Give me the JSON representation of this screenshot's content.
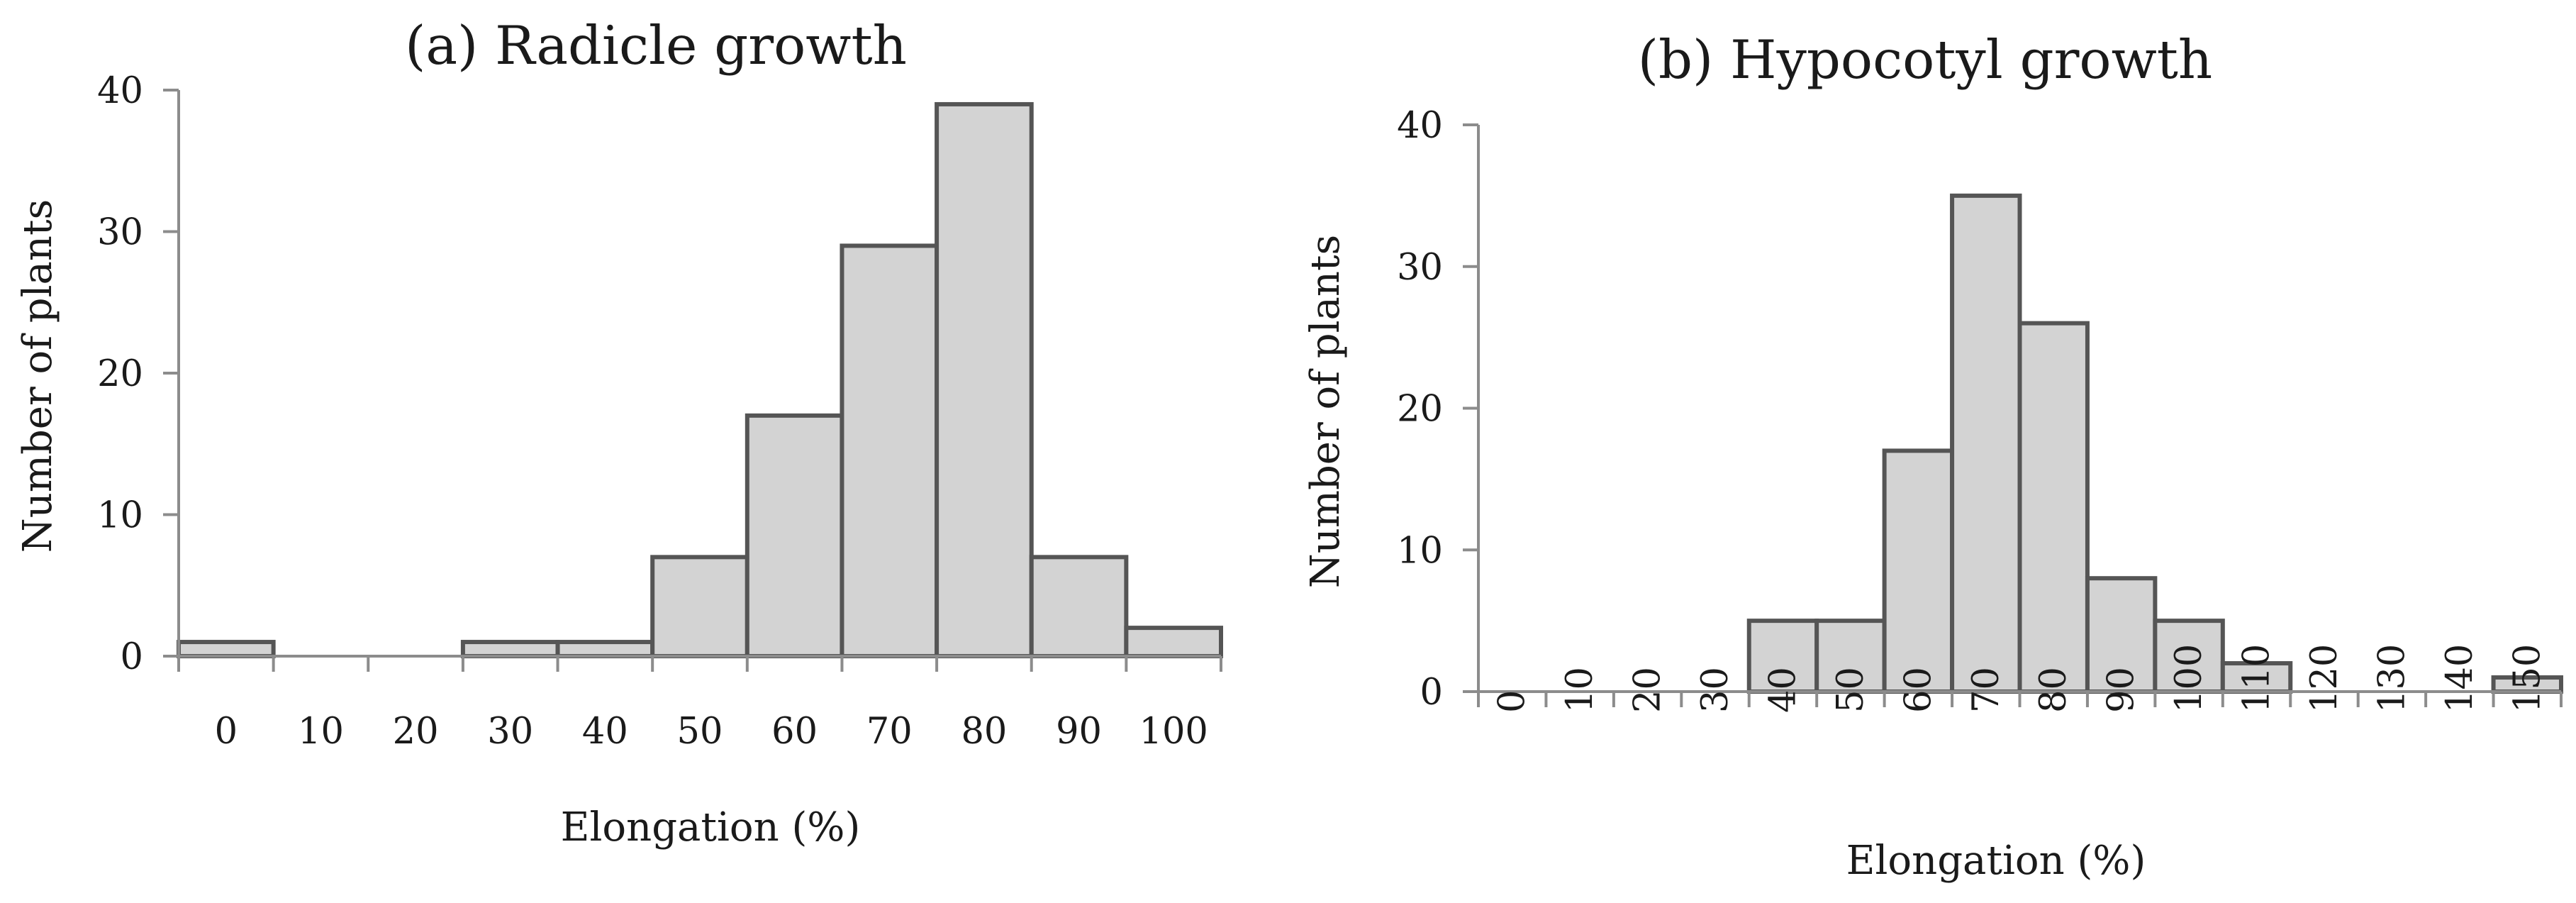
{
  "colors": {
    "bar_fill": "#d3d3d3",
    "bar_stroke": "#555555",
    "axis": "#8c8c8c"
  },
  "chart_data": [
    {
      "type": "bar",
      "title": "(a) Radicle growth",
      "xlabel": "Elongation (%)",
      "ylabel": "Number of plants",
      "categories": [
        "0",
        "10",
        "20",
        "30",
        "40",
        "50",
        "60",
        "70",
        "80",
        "90",
        "100"
      ],
      "values": [
        1,
        0,
        0,
        1,
        1,
        7,
        17,
        29,
        39,
        7,
        2
      ],
      "ylim": [
        0,
        40
      ],
      "yticks": [
        "0",
        "10",
        "20",
        "30",
        "40"
      ],
      "grid": false,
      "legend": "none"
    },
    {
      "type": "bar",
      "title": "(b) Hypocotyl growth",
      "xlabel": "Elongation (%)",
      "ylabel": "Number of plants",
      "categories": [
        "0",
        "10",
        "20",
        "30",
        "40",
        "50",
        "60",
        "70",
        "80",
        "90",
        "100",
        "110",
        "120",
        "130",
        "140",
        "150"
      ],
      "values": [
        0,
        0,
        0,
        0,
        5,
        5,
        17,
        35,
        26,
        8,
        5,
        2,
        0,
        0,
        0,
        1
      ],
      "ylim": [
        0,
        40
      ],
      "yticks": [
        "0",
        "10",
        "20",
        "30",
        "40"
      ],
      "grid": false,
      "legend": "none"
    }
  ]
}
